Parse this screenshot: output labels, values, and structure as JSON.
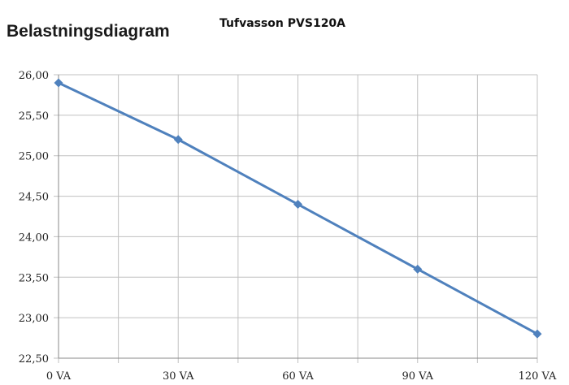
{
  "chart_data": {
    "type": "line",
    "title": "Belastningsdiagram",
    "subtitle": "Tufvasson PVS120A",
    "xlabel": "",
    "ylabel": "",
    "x": [
      0,
      30,
      60,
      90,
      120
    ],
    "x_tick_labels": [
      "0 VA",
      "30 VA",
      "60 VA",
      "90 VA",
      "120 VA"
    ],
    "y_tick_labels": [
      "26,00",
      "25,50",
      "25,00",
      "24,50",
      "24,00",
      "23,50",
      "23,00",
      "22,50"
    ],
    "y_ticks": [
      26.0,
      25.5,
      25.0,
      24.5,
      24.0,
      23.5,
      23.0,
      22.5
    ],
    "xlim": [
      0,
      120
    ],
    "ylim": [
      22.5,
      26.0
    ],
    "x_grid_step": 15,
    "grid": true,
    "marker": "diamond",
    "series": [
      {
        "values": [
          25.9,
          25.2,
          24.4,
          23.6,
          22.8
        ],
        "color": "#4f81bd"
      }
    ]
  }
}
